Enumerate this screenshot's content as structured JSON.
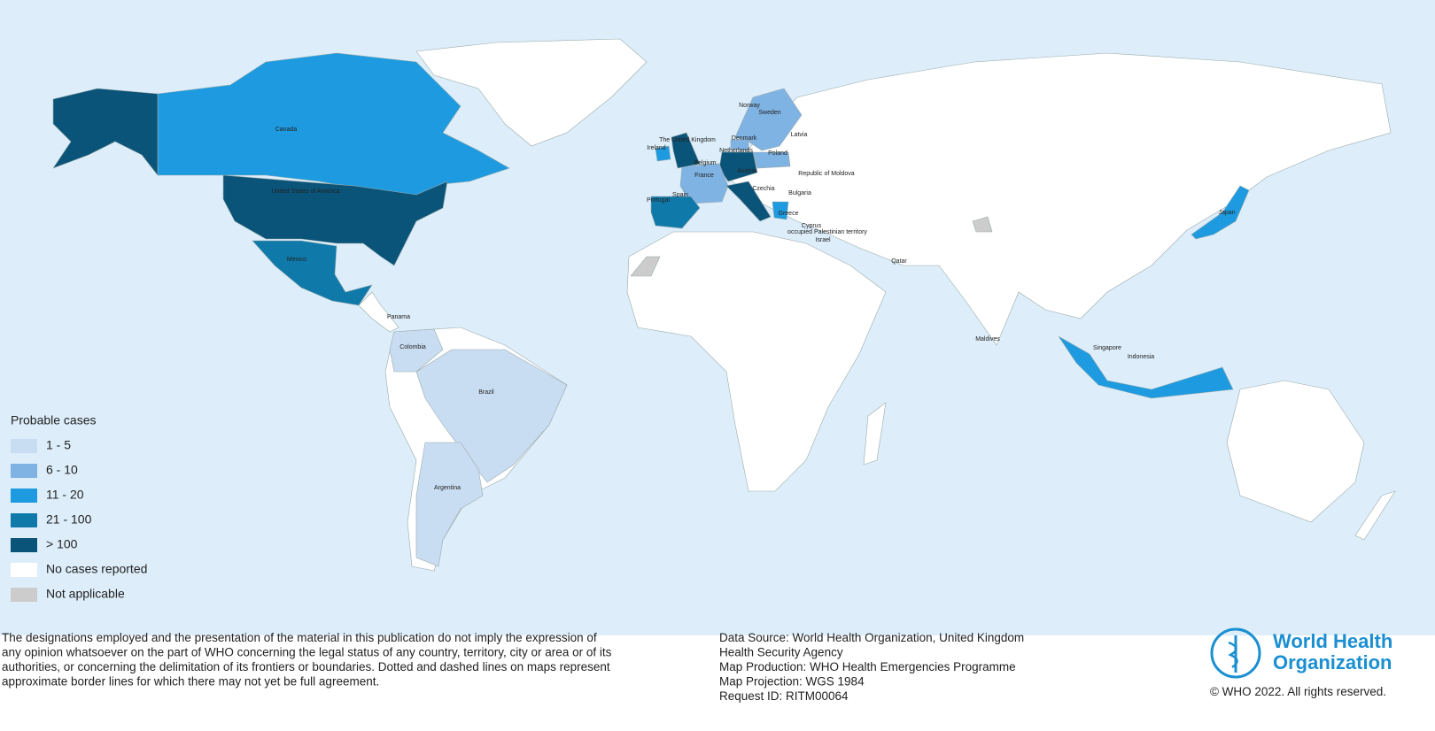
{
  "map": {
    "country_labels": [
      "Canada",
      "United States of America",
      "Mexico",
      "Panama",
      "Colombia",
      "Brazil",
      "Argentina",
      "Norway",
      "Sweden",
      "Denmark",
      "Latvia",
      "The United Kingdom",
      "Ireland",
      "Netherlands",
      "Belgium",
      "Poland",
      "France",
      "Austria",
      "Republic of Moldova",
      "Spain",
      "Portugal",
      "Czechia",
      "Bulgaria",
      "Greece",
      "Cyprus",
      "occupied Palestinian territory",
      "Israel",
      "Qatar",
      "Maldives",
      "Singapore",
      "Indonesia",
      "Japan"
    ],
    "legend": {
      "title": "Probable cases",
      "items": [
        {
          "label": "1 - 5",
          "color": "#c9ddf2"
        },
        {
          "label": "6 - 10",
          "color": "#7fb3e3"
        },
        {
          "label": "11 - 20",
          "color": "#1e9be0"
        },
        {
          "label": "21 - 100",
          "color": "#0f7aaa"
        },
        {
          "label": "> 100",
          "color": "#0b5479"
        },
        {
          "label": "No cases reported",
          "color": "#ffffff"
        },
        {
          "label": "Not applicable",
          "color": "#cccccc"
        }
      ]
    }
  },
  "footer": {
    "disclaimer": [
      "The designations employed and the presentation of the material in this publication do not imply the expression of",
      "any opinion whatsoever on the part of WHO concerning the legal status of any country, territory, city or area or of its",
      "authorities, or concerning the delimitation of its frontiers or boundaries. Dotted and dashed lines on maps represent",
      "approximate border lines for which there may not yet be full agreement."
    ],
    "credits": [
      "Data Source: World Health Organization, United Kingdom",
      "Health Security Agency",
      "Map Production: WHO Health Emergencies Programme",
      "Map Projection: WGS 1984",
      "Request ID: RITM00064"
    ],
    "logo": [
      "World Health",
      "Organization"
    ],
    "copyright": "© WHO 2022. All rights reserved."
  }
}
